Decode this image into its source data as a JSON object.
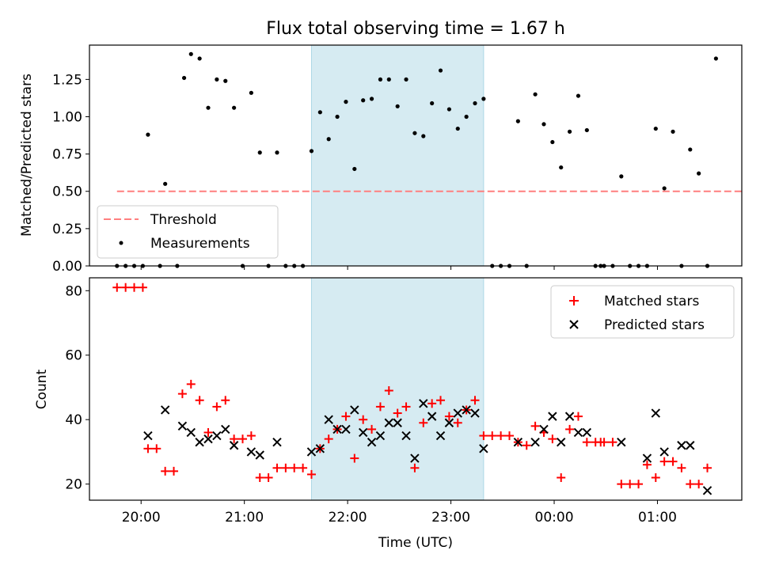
{
  "chart_data": [
    {
      "type": "scatter",
      "title": "Flux total observing time = 1.67 h",
      "ylabel": "Matched/Predicted stars",
      "ylim": [
        0,
        1.48
      ],
      "xlim": [
        "19:30",
        "01:49"
      ],
      "x_ticks": [
        "20:00",
        "21:00",
        "22:00",
        "23:00",
        "00:00",
        "01:00"
      ],
      "y_ticks": [
        "0.00",
        "0.25",
        "0.50",
        "0.75",
        "1.00",
        "1.25"
      ],
      "highlight_span": [
        "21:39",
        "23:19"
      ],
      "highlight_color": "#add8e6",
      "threshold": {
        "name": "Threshold",
        "value": 0.5,
        "x_range": [
          "19:46",
          "01:50"
        ],
        "color": "#ff7f7f",
        "style": "dashed"
      },
      "series": [
        {
          "name": "Measurements",
          "color": "#000000",
          "points": [
            [
              "19:46",
              0
            ],
            [
              "19:51",
              0
            ],
            [
              "19:56",
              0
            ],
            [
              "20:01",
              0
            ],
            [
              "20:04",
              0.88
            ],
            [
              "20:11",
              0
            ],
            [
              "20:14",
              0.55
            ],
            [
              "20:21",
              0
            ],
            [
              "20:25",
              1.26
            ],
            [
              "20:29",
              1.42
            ],
            [
              "20:34",
              1.39
            ],
            [
              "20:39",
              1.06
            ],
            [
              "20:44",
              1.25
            ],
            [
              "20:49",
              1.24
            ],
            [
              "20:54",
              1.06
            ],
            [
              "20:59",
              0
            ],
            [
              "21:04",
              1.16
            ],
            [
              "21:09",
              0.76
            ],
            [
              "21:14",
              0
            ],
            [
              "21:19",
              0.76
            ],
            [
              "21:24",
              0
            ],
            [
              "21:29",
              0
            ],
            [
              "21:34",
              0
            ],
            [
              "21:39",
              0.77
            ],
            [
              "21:44",
              1.03
            ],
            [
              "21:49",
              0.85
            ],
            [
              "21:54",
              1.0
            ],
            [
              "21:59",
              1.1
            ],
            [
              "22:04",
              0.65
            ],
            [
              "22:09",
              1.11
            ],
            [
              "22:14",
              1.12
            ],
            [
              "22:19",
              1.25
            ],
            [
              "22:24",
              1.25
            ],
            [
              "22:29",
              1.07
            ],
            [
              "22:34",
              1.25
            ],
            [
              "22:39",
              0.89
            ],
            [
              "22:44",
              0.87
            ],
            [
              "22:49",
              1.09
            ],
            [
              "22:54",
              1.31
            ],
            [
              "22:59",
              1.05
            ],
            [
              "23:04",
              0.92
            ],
            [
              "23:09",
              1.0
            ],
            [
              "23:14",
              1.09
            ],
            [
              "23:19",
              1.12
            ],
            [
              "23:24",
              0
            ],
            [
              "23:29",
              0
            ],
            [
              "23:34",
              0
            ],
            [
              "23:39",
              0.97
            ],
            [
              "23:44",
              0
            ],
            [
              "23:49",
              1.15
            ],
            [
              "23:54",
              0.95
            ],
            [
              "23:59",
              0.83
            ],
            [
              "00:04",
              0.66
            ],
            [
              "00:09",
              0.9
            ],
            [
              "00:14",
              1.14
            ],
            [
              "00:19",
              0.91
            ],
            [
              "00:24",
              0
            ],
            [
              "00:27",
              0
            ],
            [
              "00:29",
              0
            ],
            [
              "00:34",
              0
            ],
            [
              "00:39",
              0.6
            ],
            [
              "00:44",
              0
            ],
            [
              "00:49",
              0
            ],
            [
              "00:54",
              0
            ],
            [
              "00:59",
              0.92
            ],
            [
              "01:04",
              0.52
            ],
            [
              "01:09",
              0.9
            ],
            [
              "01:14",
              0
            ],
            [
              "01:19",
              0.78
            ],
            [
              "01:24",
              0.62
            ],
            [
              "01:29",
              0
            ],
            [
              "01:34",
              1.39
            ]
          ]
        }
      ],
      "legend": {
        "position": "lower-left",
        "entries": [
          "Threshold",
          "Measurements"
        ]
      }
    },
    {
      "type": "scatter",
      "xlabel": "Time (UTC)",
      "ylabel": "Count",
      "ylim": [
        15,
        84
      ],
      "xlim": [
        "19:30",
        "01:49"
      ],
      "x_ticks": [
        "20:00",
        "21:00",
        "22:00",
        "23:00",
        "00:00",
        "01:00"
      ],
      "y_ticks": [
        "20",
        "40",
        "60",
        "80"
      ],
      "highlight_span": [
        "21:39",
        "23:19"
      ],
      "highlight_color": "#add8e6",
      "series": [
        {
          "name": "Matched stars",
          "marker": "plus",
          "color": "#ff0000",
          "points": [
            [
              "19:46",
              81
            ],
            [
              "19:51",
              81
            ],
            [
              "19:56",
              81
            ],
            [
              "20:01",
              81
            ],
            [
              "20:04",
              31
            ],
            [
              "20:09",
              31
            ],
            [
              "20:14",
              24
            ],
            [
              "20:19",
              24
            ],
            [
              "20:24",
              48
            ],
            [
              "20:29",
              51
            ],
            [
              "20:34",
              46
            ],
            [
              "20:39",
              36
            ],
            [
              "20:44",
              44
            ],
            [
              "20:49",
              46
            ],
            [
              "20:54",
              34
            ],
            [
              "20:59",
              34
            ],
            [
              "21:04",
              35
            ],
            [
              "21:09",
              22
            ],
            [
              "21:14",
              22
            ],
            [
              "21:19",
              25
            ],
            [
              "21:24",
              25
            ],
            [
              "21:29",
              25
            ],
            [
              "21:34",
              25
            ],
            [
              "21:39",
              23
            ],
            [
              "21:44",
              31
            ],
            [
              "21:49",
              34
            ],
            [
              "21:54",
              37
            ],
            [
              "21:59",
              41
            ],
            [
              "22:04",
              28
            ],
            [
              "22:09",
              40
            ],
            [
              "22:14",
              37
            ],
            [
              "22:19",
              44
            ],
            [
              "22:24",
              49
            ],
            [
              "22:29",
              42
            ],
            [
              "22:34",
              44
            ],
            [
              "22:39",
              25
            ],
            [
              "22:44",
              39
            ],
            [
              "22:49",
              45
            ],
            [
              "22:54",
              46
            ],
            [
              "22:59",
              41
            ],
            [
              "23:04",
              39
            ],
            [
              "23:09",
              43
            ],
            [
              "23:14",
              46
            ],
            [
              "23:19",
              35
            ],
            [
              "23:24",
              35
            ],
            [
              "23:29",
              35
            ],
            [
              "23:34",
              35
            ],
            [
              "23:39",
              33
            ],
            [
              "23:44",
              32
            ],
            [
              "23:49",
              38
            ],
            [
              "23:54",
              36
            ],
            [
              "23:59",
              34
            ],
            [
              "00:04",
              22
            ],
            [
              "00:09",
              37
            ],
            [
              "00:14",
              41
            ],
            [
              "00:19",
              33
            ],
            [
              "00:24",
              33
            ],
            [
              "00:27",
              33
            ],
            [
              "00:29",
              33
            ],
            [
              "00:34",
              33
            ],
            [
              "00:39",
              20
            ],
            [
              "00:44",
              20
            ],
            [
              "00:49",
              20
            ],
            [
              "00:54",
              26
            ],
            [
              "00:59",
              22
            ],
            [
              "01:04",
              27
            ],
            [
              "01:09",
              27
            ],
            [
              "01:14",
              25
            ],
            [
              "01:19",
              20
            ],
            [
              "01:24",
              20
            ],
            [
              "01:29",
              25
            ]
          ]
        },
        {
          "name": "Predicted stars",
          "marker": "x",
          "color": "#000000",
          "points": [
            [
              "20:04",
              35
            ],
            [
              "20:14",
              43
            ],
            [
              "20:24",
              38
            ],
            [
              "20:29",
              36
            ],
            [
              "20:34",
              33
            ],
            [
              "20:39",
              34
            ],
            [
              "20:44",
              35
            ],
            [
              "20:49",
              37
            ],
            [
              "20:54",
              32
            ],
            [
              "21:04",
              30
            ],
            [
              "21:09",
              29
            ],
            [
              "21:19",
              33
            ],
            [
              "21:39",
              30
            ],
            [
              "21:44",
              31
            ],
            [
              "21:49",
              40
            ],
            [
              "21:54",
              37
            ],
            [
              "21:59",
              37
            ],
            [
              "22:04",
              43
            ],
            [
              "22:09",
              36
            ],
            [
              "22:14",
              33
            ],
            [
              "22:19",
              35
            ],
            [
              "22:24",
              39
            ],
            [
              "22:29",
              39
            ],
            [
              "22:34",
              35
            ],
            [
              "22:39",
              28
            ],
            [
              "22:44",
              45
            ],
            [
              "22:49",
              41
            ],
            [
              "22:54",
              35
            ],
            [
              "22:59",
              39
            ],
            [
              "23:04",
              42
            ],
            [
              "23:09",
              43
            ],
            [
              "23:14",
              42
            ],
            [
              "23:19",
              31
            ],
            [
              "23:39",
              33
            ],
            [
              "23:49",
              33
            ],
            [
              "23:54",
              37
            ],
            [
              "23:59",
              41
            ],
            [
              "00:04",
              33
            ],
            [
              "00:09",
              41
            ],
            [
              "00:14",
              36
            ],
            [
              "00:19",
              36
            ],
            [
              "00:39",
              33
            ],
            [
              "00:54",
              28
            ],
            [
              "00:59",
              42
            ],
            [
              "01:04",
              30
            ],
            [
              "01:14",
              32
            ],
            [
              "01:19",
              32
            ],
            [
              "01:29",
              18
            ]
          ]
        }
      ],
      "legend": {
        "position": "top-right",
        "entries": [
          "Matched stars",
          "Predicted stars"
        ]
      }
    }
  ]
}
